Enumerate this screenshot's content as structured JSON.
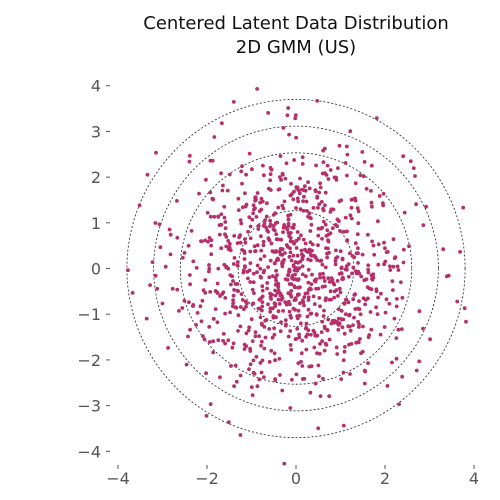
{
  "chart_data": {
    "type": "scatter",
    "title": "Centered Latent Data Distribution",
    "subtitle": "2D GMM (US)",
    "xlabel": "",
    "ylabel": "",
    "xlim": [
      -4,
      4
    ],
    "ylim": [
      -4.3,
      4.3
    ],
    "x_ticks": [
      "−4",
      "−2",
      "0",
      "2",
      "4"
    ],
    "y_ticks": [
      "4",
      "3",
      "2",
      "1",
      "0",
      "−1",
      "−2",
      "−3",
      "−4"
    ],
    "grid": false,
    "legend": "none",
    "point_color": "#b5306b",
    "n_points": 1000,
    "sample_stddev": 1.3,
    "reference_circles": {
      "radii": [
        1.3,
        2.6,
        3.2,
        3.8
      ],
      "style": "dashed",
      "color": "#222222"
    }
  }
}
